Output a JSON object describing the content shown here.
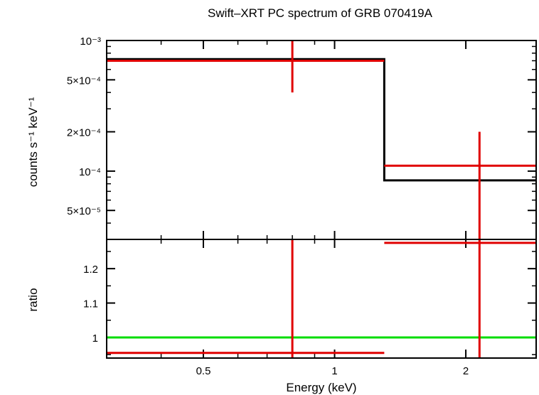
{
  "chart_data": [
    {
      "type": "line",
      "panel": "spectrum",
      "title": "Swift–XRT PC spectrum of GRB 070419A",
      "ylabel": "counts s⁻¹ keV⁻¹",
      "xscale": "log",
      "yscale": "log",
      "xlim": [
        0.3,
        2.9
      ],
      "ylim": [
        3e-05,
        0.001
      ],
      "y_ticks": [
        {
          "value": 0.001,
          "label": "10⁻³"
        },
        {
          "value": 0.0005,
          "label": "5×10⁻⁴"
        },
        {
          "value": 0.0002,
          "label": "2×10⁻⁴"
        },
        {
          "value": 0.0001,
          "label": "10⁻⁴"
        },
        {
          "value": 5e-05,
          "label": "5×10⁻⁵"
        }
      ],
      "model": {
        "color": "#000000",
        "steps": [
          {
            "x0": 0.3,
            "x1": 1.3,
            "y": 0.00072
          },
          {
            "x0": 1.3,
            "x1": 2.9,
            "y": 8.5e-05
          }
        ]
      },
      "data_points": {
        "color": "#e00000",
        "points": [
          {
            "x": 0.8,
            "xlo": 0.3,
            "xhi": 1.3,
            "y": 0.0007,
            "ylo": 0.0004,
            "yhi": 0.001
          },
          {
            "x": 2.15,
            "xlo": 1.3,
            "xhi": 2.9,
            "y": 0.00011,
            "ylo": 3e-05,
            "yhi": 0.0002
          }
        ]
      }
    },
    {
      "type": "line",
      "panel": "ratio",
      "xlabel": "Energy (keV)",
      "ylabel": "ratio",
      "xscale": "log",
      "xlim": [
        0.3,
        2.9
      ],
      "ylim": [
        0.94,
        1.285
      ],
      "x_ticks": [
        {
          "value": 0.5,
          "label": "0.5"
        },
        {
          "value": 1,
          "label": "1"
        },
        {
          "value": 2,
          "label": "2"
        }
      ],
      "y_ticks": [
        {
          "value": 1,
          "label": "1"
        },
        {
          "value": 1.1,
          "label": "1.1"
        },
        {
          "value": 1.2,
          "label": "1.2"
        }
      ],
      "reference_line": {
        "y": 1,
        "color": "#00dd00"
      },
      "data_points": {
        "color": "#e00000",
        "points": [
          {
            "x": 0.8,
            "xlo": 0.3,
            "xhi": 1.3,
            "y": 0.955,
            "ylo": 0.94,
            "yhi": 1.285
          },
          {
            "x": 2.15,
            "xlo": 1.3,
            "xhi": 2.9,
            "y": 1.275,
            "ylo": 0.94,
            "yhi": 1.285
          }
        ]
      }
    }
  ]
}
